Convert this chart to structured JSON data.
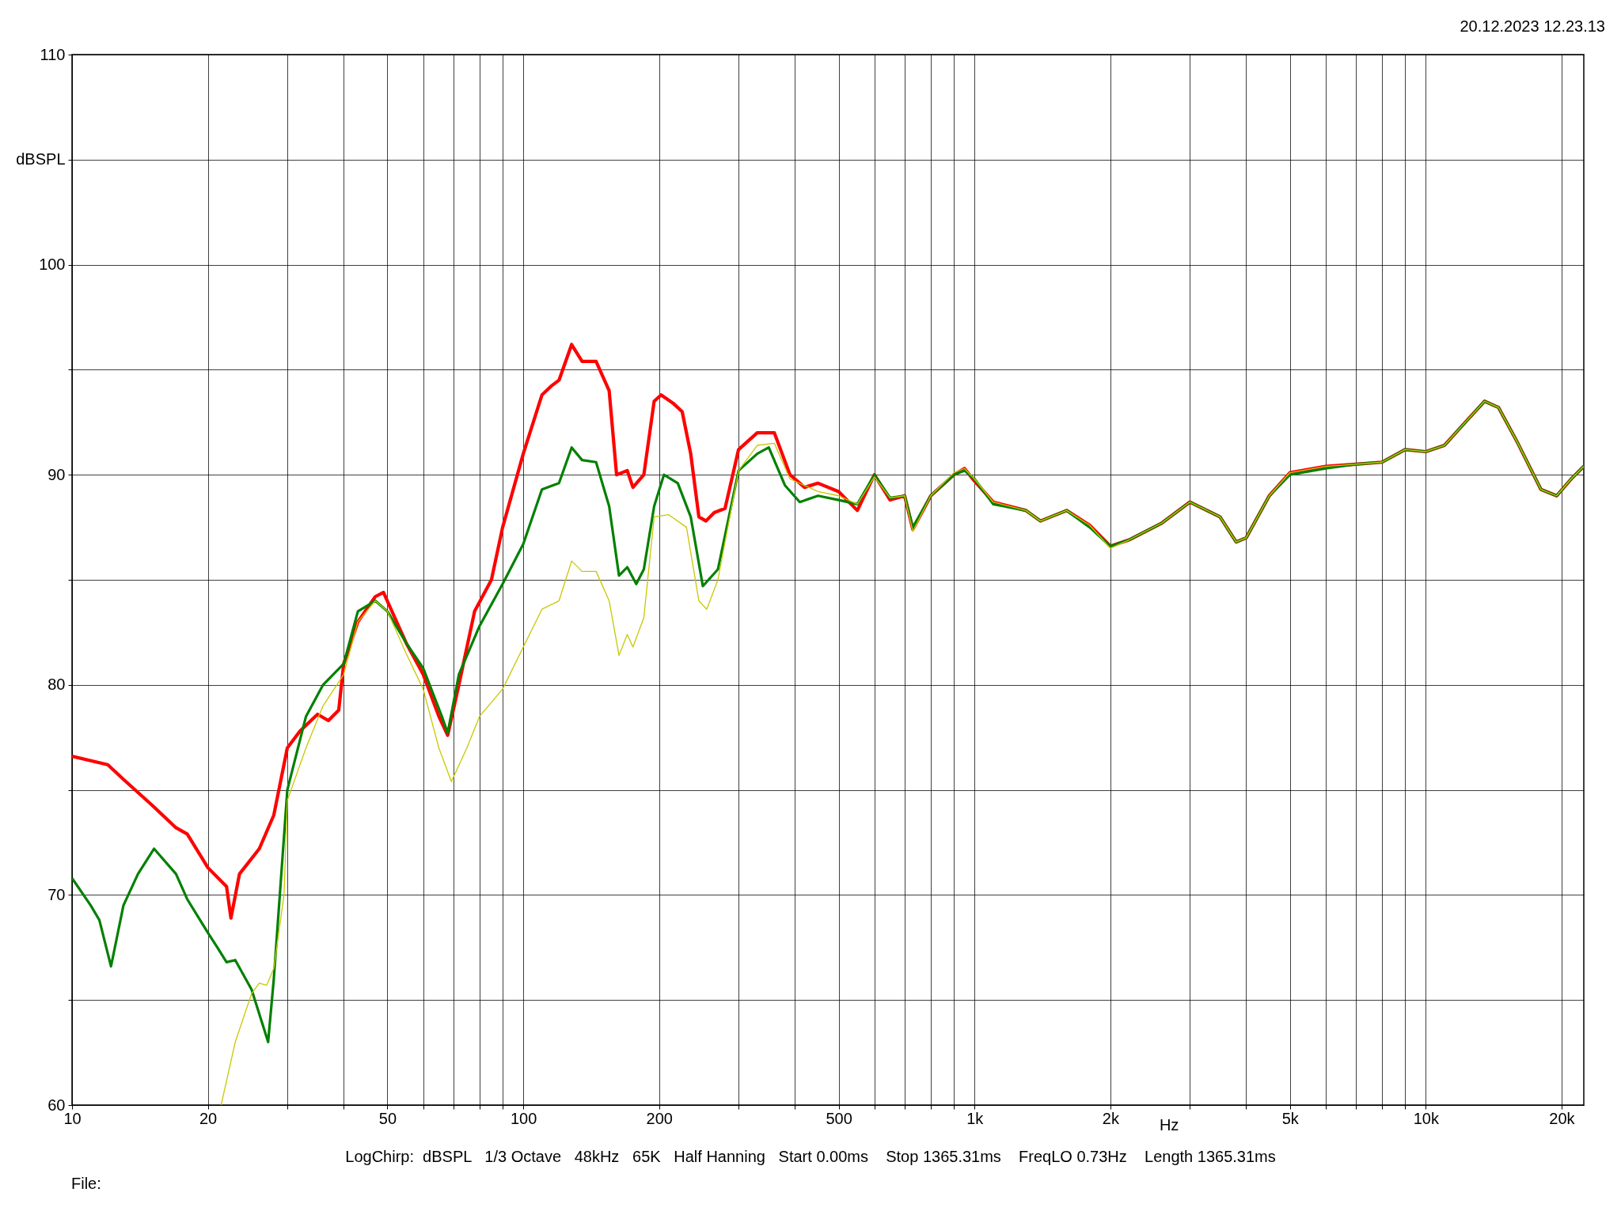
{
  "chart_data": {
    "type": "line",
    "grid": true,
    "xlabel": "Hz",
    "log": "x",
    "xlim": [
      10,
      22400
    ],
    "ylim": [
      60,
      110
    ],
    "xticks": [
      10,
      {
        "value": 20,
        "label": "20"
      },
      {
        "value": 30,
        "label": null
      },
      {
        "value": 40,
        "label": null
      },
      50,
      {
        "value": 60,
        "label": null
      },
      {
        "value": 70,
        "label": null
      },
      {
        "value": 80,
        "label": null
      },
      {
        "value": 90,
        "label": null
      },
      100,
      200,
      {
        "value": 300,
        "label": null
      },
      {
        "value": 400,
        "label": null
      },
      500,
      {
        "value": 600,
        "label": null
      },
      {
        "value": 700,
        "label": null
      },
      {
        "value": 800,
        "label": null
      },
      {
        "value": 900,
        "label": null
      },
      {
        "value": 1000,
        "label": "1k"
      },
      {
        "value": 2000,
        "label": "2k"
      },
      {
        "value": 3000,
        "label": null
      },
      {
        "value": 4000,
        "label": null
      },
      {
        "value": 5000,
        "label": "5k"
      },
      {
        "value": 6000,
        "label": null
      },
      {
        "value": 7000,
        "label": null
      },
      {
        "value": 8000,
        "label": null
      },
      {
        "value": 9000,
        "label": null
      },
      {
        "value": 10000,
        "label": "10k"
      },
      {
        "value": 20000,
        "label": "20k"
      }
    ],
    "yticks": [
      60,
      {
        "value": 65,
        "label": null
      },
      70,
      {
        "value": 75,
        "label": null
      },
      80,
      {
        "value": 85,
        "label": null
      },
      90,
      {
        "value": 95,
        "label": null
      },
      100,
      {
        "value": 105,
        "label": "dBSPL"
      },
      110
    ],
    "annotations": [
      "20.12.2023 12.23.13",
      "LogChirp:  dBSPL   1/3 Octave   48kHz   65K   Half Hanning   Start 0.00ms    Stop 1365.31ms    FreqLO 0.73Hz    Length 1365.31ms",
      "File:"
    ],
    "series": [
      {
        "color": "#ff0000",
        "x": [
          10,
          12,
          13,
          15,
          17,
          18,
          20,
          22,
          22.5,
          23.5,
          26,
          28,
          30,
          32,
          35,
          37,
          39,
          40,
          43,
          47,
          49,
          55,
          60,
          65,
          68,
          72,
          78,
          85,
          90,
          100,
          110,
          115,
          120,
          128,
          135,
          145,
          155,
          161,
          170,
          175,
          185,
          195,
          202,
          215,
          225,
          235,
          245,
          254,
          265,
          280,
          300,
          330,
          360,
          390,
          420,
          450,
          500,
          550,
          600,
          650,
          700,
          730,
          800,
          900,
          950,
          1000,
          1100,
          1300,
          1400,
          1600,
          1800,
          2000,
          2200,
          2600,
          3000,
          3500,
          3800,
          4000,
          4500,
          5000,
          6000,
          7000,
          8000,
          9000,
          10000,
          11000,
          12000,
          13500,
          14500,
          16000,
          18000,
          19500,
          21000,
          22400
        ],
        "values": [
          76.6,
          76.2,
          75.5,
          74.3,
          73.2,
          72.9,
          71.3,
          70.4,
          68.9,
          71.0,
          72.2,
          73.8,
          77,
          77.8,
          78.6,
          78.3,
          78.8,
          81,
          83,
          84.2,
          84.4,
          82,
          80.5,
          78.5,
          77.6,
          80,
          83.5,
          85,
          87.5,
          91,
          93.8,
          94.2,
          94.5,
          96.2,
          95.4,
          95.4,
          94,
          90,
          90.2,
          89.4,
          90,
          93.5,
          93.8,
          93.4,
          93,
          91,
          88,
          87.8,
          88.2,
          88.4,
          91.2,
          92,
          92,
          90,
          89.4,
          89.6,
          89.2,
          88.3,
          90,
          88.8,
          89,
          87.4,
          89,
          90,
          90.3,
          89.7,
          88.7,
          88.3,
          87.8,
          88.3,
          87.6,
          86.6,
          86.9,
          87.7,
          88.7,
          88,
          86.8,
          87,
          89,
          90.1,
          90.4,
          90.5,
          90.6,
          91.2,
          91.1,
          91.4,
          92.3,
          93.5,
          93.2,
          91.5,
          89.3,
          89,
          89.8,
          90.4
        ]
      },
      {
        "color": "#008000",
        "x": [
          10,
          11,
          11.5,
          12.2,
          13,
          14,
          15.2,
          17,
          18,
          20,
          21,
          22,
          23,
          25,
          27.2,
          28,
          30,
          33,
          36,
          40,
          43,
          47,
          50,
          55,
          60,
          66,
          68,
          72,
          80,
          90,
          100,
          110,
          120,
          128,
          135,
          145,
          155,
          163,
          170,
          178,
          185,
          195,
          205,
          220,
          235,
          250,
          270,
          300,
          330,
          350,
          380,
          410,
          450,
          500,
          550,
          600,
          650,
          700,
          730,
          800,
          900,
          950,
          1000,
          1100,
          1300,
          1400,
          1600,
          1800,
          2000,
          2200,
          2600,
          3000,
          3500,
          3800,
          4000,
          4500,
          5000,
          6000,
          7000,
          8000,
          9000,
          10000,
          11000,
          12000,
          13500,
          14500,
          16000,
          18000,
          19500,
          21000,
          22400
        ],
        "values": [
          70.8,
          69.5,
          68.8,
          66.6,
          69.5,
          71,
          72.2,
          71,
          69.8,
          68.2,
          67.5,
          66.8,
          66.9,
          65.5,
          63,
          66,
          75,
          78.5,
          80,
          81,
          83.5,
          84,
          83.5,
          82,
          80.8,
          78.5,
          77.7,
          80.5,
          82.8,
          84.8,
          86.7,
          89.3,
          89.6,
          91.3,
          90.7,
          90.6,
          88.5,
          85.2,
          85.6,
          84.8,
          85.5,
          88.5,
          90,
          89.6,
          88,
          84.7,
          85.5,
          90.2,
          91,
          91.3,
          89.5,
          88.7,
          89,
          88.8,
          88.6,
          90,
          88.9,
          89,
          87.5,
          89,
          90,
          90.2,
          89.8,
          88.6,
          88.3,
          87.8,
          88.3,
          87.5,
          86.6,
          86.9,
          87.7,
          88.7,
          88,
          86.8,
          87,
          89,
          90,
          90.3,
          90.5,
          90.6,
          91.2,
          91.1,
          91.4,
          92.3,
          93.5,
          93.2,
          91.5,
          89.3,
          89,
          89.8,
          90.4
        ]
      },
      {
        "color": "#c8c800",
        "x": [
          21.4,
          23,
          25,
          26,
          27,
          28,
          29.5,
          30,
          33,
          36,
          40,
          43,
          47,
          50,
          55,
          60,
          65,
          69.3,
          75,
          80,
          90,
          100,
          110,
          120,
          128,
          135,
          145,
          155,
          163,
          170,
          175,
          185,
          195,
          210,
          230,
          245,
          255,
          270,
          300,
          330,
          360,
          390,
          450,
          500,
          550,
          600,
          650,
          700,
          730,
          800,
          900,
          950,
          1000,
          1100,
          1300,
          1400,
          1600,
          1800,
          2000,
          2200,
          2600,
          3000,
          3500,
          3800,
          4000,
          4500,
          5000,
          6000,
          7000,
          8000,
          9000,
          10000,
          11000,
          12000,
          13500,
          14500,
          16000,
          18000,
          19500,
          21000,
          22400
        ],
        "values": [
          60,
          63,
          65.3,
          65.8,
          65.7,
          66.5,
          70,
          74.5,
          77,
          79,
          80.5,
          83,
          84,
          83.5,
          81.5,
          79.8,
          77,
          75.4,
          77,
          78.5,
          79.8,
          81.8,
          83.6,
          84,
          85.9,
          85.4,
          85.4,
          84,
          81.4,
          82.4,
          81.8,
          83.2,
          88,
          88.1,
          87.5,
          84,
          83.6,
          85,
          90.2,
          91.4,
          91.5,
          89.8,
          89.2,
          89,
          88.6,
          89.9,
          88.9,
          89,
          87.3,
          89,
          90.1,
          90.3,
          89.8,
          88.7,
          88.3,
          87.8,
          88.3,
          87.6,
          86.5,
          86.9,
          87.7,
          88.7,
          88,
          86.8,
          87,
          89,
          90.1,
          90.4,
          90.5,
          90.6,
          91.2,
          91.1,
          91.4,
          92.3,
          93.5,
          93.2,
          91.5,
          89.3,
          89,
          89.8,
          90.4
        ]
      }
    ]
  }
}
